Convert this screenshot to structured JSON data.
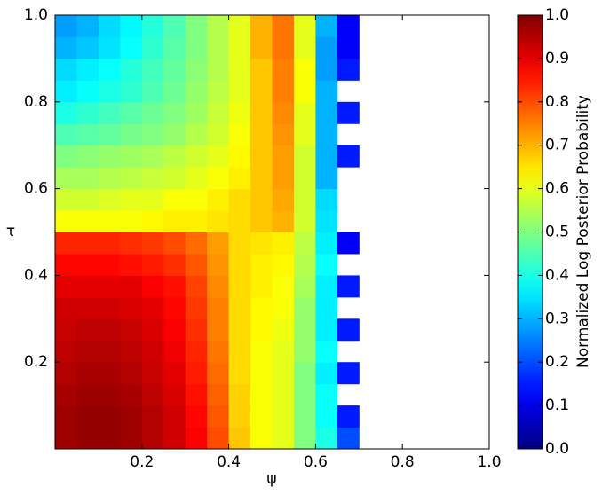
{
  "chart_data": {
    "type": "heatmap",
    "xlabel": "ψ",
    "ylabel": "τ",
    "colorbar_label": "Normalized Log Posterior Probability",
    "colormap": "jet",
    "xlim": [
      0,
      1
    ],
    "ylim": [
      0,
      1
    ],
    "xticks": [
      0.2,
      0.4,
      0.6,
      0.8,
      {
        "value": 1,
        "label": "1.0"
      }
    ],
    "yticks": [
      0.2,
      0.4,
      0.6,
      0.8,
      {
        "value": 1,
        "label": "1.0"
      }
    ],
    "clim": [
      0,
      1
    ],
    "cticks": [
      {
        "value": 0,
        "label": "0.0"
      },
      0.1,
      0.2,
      0.3,
      0.4,
      0.5,
      0.6,
      0.7,
      0.8,
      0.9,
      {
        "value": 1,
        "label": "1.0"
      }
    ],
    "xbins": [
      0,
      0.05,
      0.1,
      0.15,
      0.2,
      0.25,
      0.3,
      0.35,
      0.4,
      0.45,
      0.5,
      0.55,
      0.6,
      0.65,
      0.7,
      0.75,
      0.8,
      0.85,
      0.9,
      0.95,
      1
    ],
    "ybins": [
      0,
      0.05,
      0.1,
      0.15,
      0.2,
      0.25,
      0.3,
      0.35,
      0.4,
      0.45,
      0.5,
      0.55,
      0.6,
      0.65,
      0.7,
      0.75,
      0.8,
      0.85,
      0.9,
      0.95,
      1
    ],
    "z": [
      [
        0.97,
        0.98,
        0.98,
        0.97,
        0.95,
        0.92,
        0.88,
        0.8,
        0.68,
        0.62,
        0.6,
        0.5,
        0.4,
        0.2,
        null,
        null,
        null,
        null,
        null,
        null
      ],
      [
        0.97,
        0.98,
        0.98,
        0.97,
        0.95,
        0.92,
        0.87,
        0.79,
        0.67,
        0.62,
        0.6,
        0.5,
        0.38,
        0.15,
        null,
        null,
        null,
        null,
        null,
        null
      ],
      [
        0.96,
        0.97,
        0.97,
        0.96,
        0.94,
        0.91,
        0.86,
        0.78,
        0.67,
        0.62,
        0.6,
        0.5,
        0.38,
        null,
        null,
        null,
        null,
        null,
        null,
        null
      ],
      [
        0.95,
        0.96,
        0.96,
        0.95,
        0.93,
        0.9,
        0.85,
        0.77,
        0.66,
        0.62,
        0.6,
        0.5,
        0.36,
        0.15,
        null,
        null,
        null,
        null,
        null,
        null
      ],
      [
        0.94,
        0.95,
        0.95,
        0.94,
        0.92,
        0.89,
        0.84,
        0.76,
        0.66,
        0.62,
        0.6,
        0.52,
        0.38,
        null,
        null,
        null,
        null,
        null,
        null,
        null
      ],
      [
        0.93,
        0.94,
        0.94,
        0.93,
        0.91,
        0.88,
        0.83,
        0.75,
        0.66,
        0.63,
        0.61,
        0.52,
        0.36,
        0.15,
        null,
        null,
        null,
        null,
        null,
        null
      ],
      [
        0.92,
        0.92,
        0.92,
        0.91,
        0.9,
        0.87,
        0.82,
        0.75,
        0.66,
        0.63,
        0.62,
        0.52,
        0.36,
        null,
        null,
        null,
        null,
        null,
        null,
        null
      ],
      [
        0.9,
        0.9,
        0.9,
        0.9,
        0.88,
        0.86,
        0.81,
        0.74,
        0.66,
        0.64,
        0.62,
        0.54,
        0.36,
        0.15,
        null,
        null,
        null,
        null,
        null,
        null
      ],
      [
        0.87,
        0.87,
        0.87,
        0.86,
        0.85,
        0.83,
        0.79,
        0.73,
        0.66,
        0.64,
        0.63,
        0.55,
        0.38,
        null,
        null,
        null,
        null,
        null,
        null,
        null
      ],
      [
        0.84,
        0.84,
        0.84,
        0.83,
        0.82,
        0.8,
        0.77,
        0.72,
        0.66,
        0.65,
        0.64,
        0.56,
        0.36,
        0.12,
        null,
        null,
        null,
        null,
        null,
        null
      ],
      [
        0.62,
        0.62,
        0.62,
        0.62,
        0.63,
        0.64,
        0.64,
        0.65,
        0.66,
        0.68,
        0.7,
        0.58,
        0.35,
        null,
        null,
        null,
        null,
        null,
        null,
        null
      ],
      [
        0.58,
        0.58,
        0.59,
        0.6,
        0.6,
        0.62,
        0.62,
        0.64,
        0.66,
        0.68,
        0.71,
        0.58,
        0.34,
        null,
        null,
        null,
        null,
        null,
        null,
        null
      ],
      [
        0.54,
        0.54,
        0.55,
        0.56,
        0.57,
        0.58,
        0.6,
        0.62,
        0.64,
        0.68,
        0.72,
        0.58,
        0.3,
        null,
        null,
        null,
        null,
        null,
        null,
        null
      ],
      [
        0.5,
        0.51,
        0.52,
        0.53,
        0.54,
        0.56,
        0.58,
        0.6,
        0.63,
        0.68,
        0.72,
        0.58,
        0.3,
        0.15,
        null,
        null,
        null,
        null,
        null,
        null
      ],
      [
        0.45,
        0.46,
        0.47,
        0.49,
        0.5,
        0.52,
        0.55,
        0.58,
        0.62,
        0.68,
        0.73,
        0.6,
        0.3,
        null,
        null,
        null,
        null,
        null,
        null,
        null
      ],
      [
        0.4,
        0.42,
        0.44,
        0.46,
        0.48,
        0.5,
        0.53,
        0.57,
        0.61,
        0.68,
        0.74,
        0.6,
        0.3,
        0.15,
        null,
        null,
        null,
        null,
        null,
        null
      ],
      [
        0.36,
        0.38,
        0.4,
        0.42,
        0.45,
        0.48,
        0.52,
        0.56,
        0.6,
        0.68,
        0.75,
        0.62,
        0.3,
        null,
        null,
        null,
        null,
        null,
        null,
        null
      ],
      [
        0.34,
        0.36,
        0.38,
        0.41,
        0.44,
        0.47,
        0.51,
        0.55,
        0.6,
        0.68,
        0.75,
        0.62,
        0.28,
        0.15,
        null,
        null,
        null,
        null,
        null,
        null
      ],
      [
        0.3,
        0.32,
        0.35,
        0.38,
        0.42,
        0.46,
        0.5,
        0.55,
        0.6,
        0.7,
        0.76,
        0.6,
        0.28,
        0.12,
        null,
        null,
        null,
        null,
        null,
        null
      ],
      [
        0.28,
        0.3,
        0.34,
        0.37,
        0.41,
        0.45,
        0.5,
        0.55,
        0.6,
        0.7,
        0.76,
        0.6,
        0.3,
        0.12,
        null,
        null,
        null,
        null,
        null,
        null
      ]
    ]
  }
}
